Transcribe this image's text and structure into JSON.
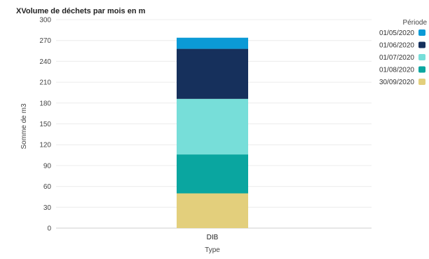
{
  "chart_data": {
    "type": "bar",
    "stacked": true,
    "title": "XVolume de déchets par mois en m",
    "xlabel": "Type",
    "ylabel": "Somme de m3",
    "categories": [
      "DIB"
    ],
    "ylim": [
      0,
      300
    ],
    "yticks": [
      0,
      30,
      60,
      90,
      120,
      150,
      180,
      210,
      240,
      270,
      300
    ],
    "grid": true,
    "legend_title": "Période",
    "legend_position": "right",
    "series": [
      {
        "name": "30/09/2020",
        "values": [
          50
        ],
        "color": "#e3cf7c"
      },
      {
        "name": "01/08/2020",
        "values": [
          56
        ],
        "color": "#0aa6a0"
      },
      {
        "name": "01/07/2020",
        "values": [
          80
        ],
        "color": "#77ded9"
      },
      {
        "name": "01/06/2020",
        "values": [
          72
        ],
        "color": "#16305c"
      },
      {
        "name": "01/05/2020",
        "values": [
          16
        ],
        "color": "#0b9ad6"
      }
    ],
    "legend_order": [
      "01/05/2020",
      "01/06/2020",
      "01/07/2020",
      "01/08/2020",
      "30/09/2020"
    ]
  }
}
